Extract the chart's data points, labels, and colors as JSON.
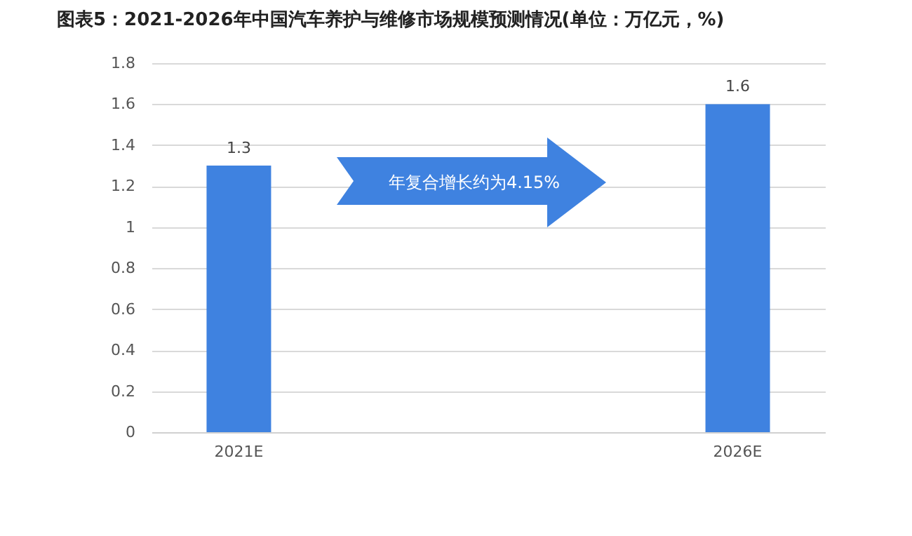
{
  "chart_data": {
    "type": "bar",
    "title": "图表5：2021-2026年中国汽车养护与维修市场规模预测情况(单位：万亿元，%)",
    "categories": [
      "2021E",
      "2026E"
    ],
    "series": [
      {
        "color": "#3f82e0",
        "values": [
          1.3,
          1.6
        ]
      }
    ],
    "ylim": [
      0,
      1.8
    ],
    "yticks": [
      0,
      0.2,
      0.4,
      0.6,
      0.8,
      1,
      1.2,
      1.4,
      1.6,
      1.8
    ],
    "grid": "y",
    "data_labels": true,
    "annotations": [
      "年复合增长约为4.15%"
    ]
  }
}
